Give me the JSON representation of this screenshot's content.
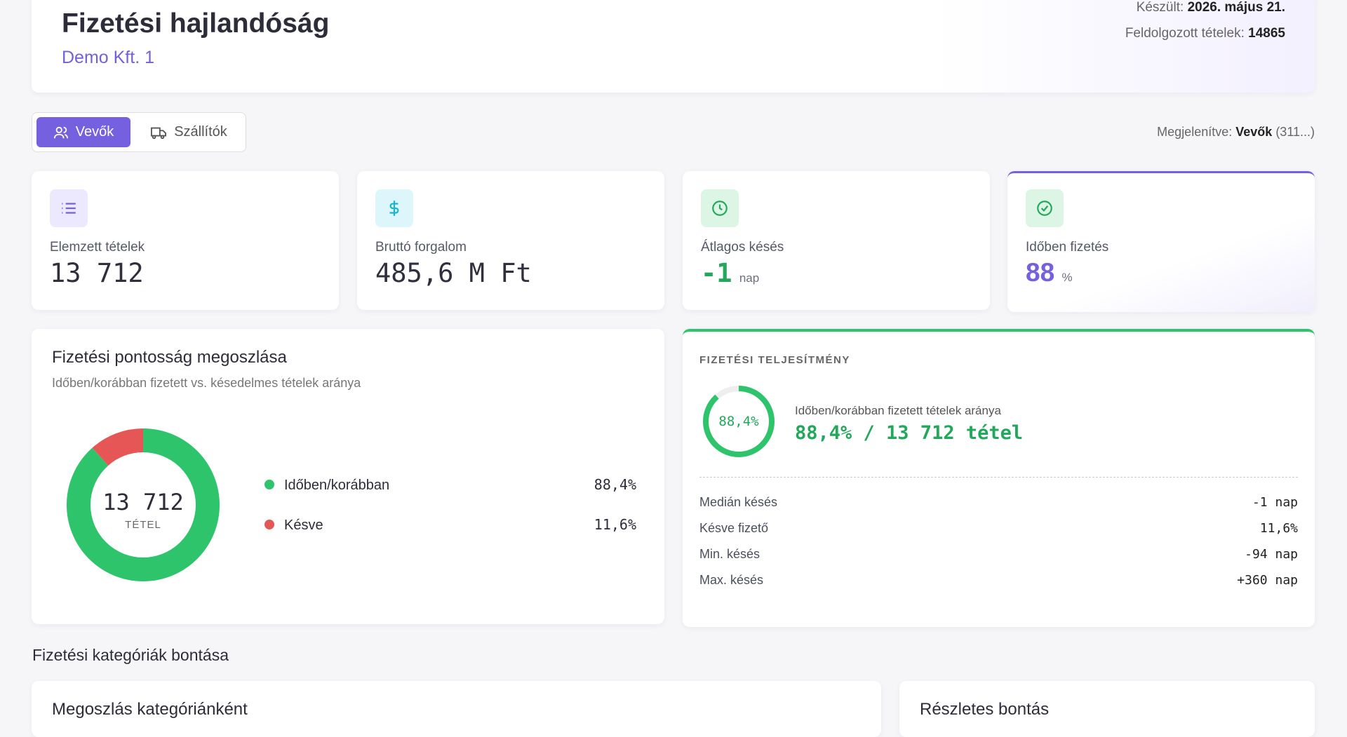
{
  "header": {
    "title": "Fizetési hajlandóság",
    "subtitle": "Demo Kft. 1",
    "meta": [
      {
        "label": "Készült:",
        "value": "2026. május 21."
      },
      {
        "label": "Feldolgozott tételek:",
        "value": "14865"
      }
    ]
  },
  "tabs": [
    "Vevők",
    "Szállítók"
  ],
  "display": {
    "label": "Megjelenítve:",
    "value": "Vevők",
    "count": "(311...)"
  },
  "stats": [
    {
      "label": "Elemzett tételek",
      "value": "13 712"
    },
    {
      "label": "Bruttó forgalom",
      "value": "485,6 M Ft"
    },
    {
      "label": "Átlagos késés",
      "value": "-1",
      "unit": "nap"
    },
    {
      "label": "Időben fizetés",
      "value": "88",
      "unit": "%"
    }
  ],
  "accuracy": {
    "title": "Fizetési pontosság megoszlása",
    "subtitle": "Időben/korábban fizetett vs. késedelmes tételek aránya",
    "center_value": "13 712",
    "center_label": "TÉTEL",
    "segments": [
      {
        "name": "Időben/korábban",
        "value": 88.4,
        "label": "88,4%",
        "color": "#2ec46c"
      },
      {
        "name": "Késve",
        "value": 11.6,
        "label": "11,6%",
        "color": "#e65656"
      }
    ]
  },
  "performance": {
    "heading": "FIZETÉSI TELJESÍTMÉNY",
    "ring": {
      "value": 88.4,
      "label": "88,4%",
      "color": "#2ec46c"
    },
    "caption": "Időben/korábban fizetett tételek aránya",
    "headline": "88,4% / 13 712 tétel",
    "rows": [
      [
        "Medián késés",
        "-1 nap"
      ],
      [
        "Késve fizető",
        "11,6%"
      ],
      [
        "Min. késés",
        "-94 nap"
      ],
      [
        "Max. késés",
        "+360 nap"
      ]
    ]
  },
  "section_title": "Fizetési kategóriák bontása",
  "panels": [
    "Megoszlás kategóriánként",
    "Részletes bontás"
  ]
}
